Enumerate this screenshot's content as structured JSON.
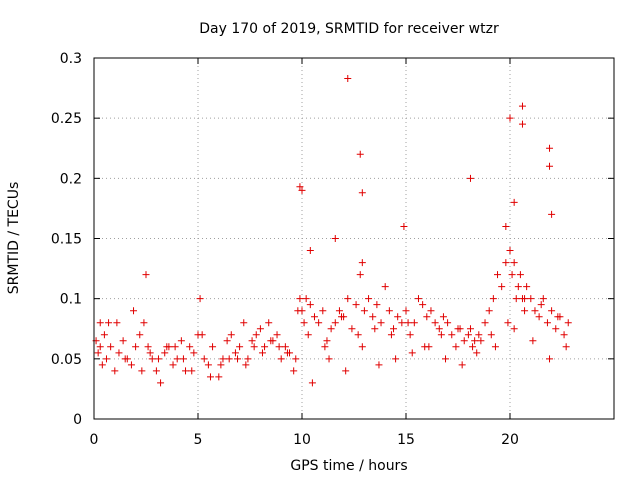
{
  "chart_data": {
    "type": "scatter",
    "title": "Day 170 of 2019, SRMTID for receiver wtzr",
    "xlabel": "GPS time / hours",
    "ylabel": "SRMTID / TECUs",
    "xlim": [
      0,
      25
    ],
    "ylim": [
      0,
      0.3
    ],
    "x_ticks": [
      0,
      5,
      10,
      15,
      20
    ],
    "x_tick_labels": [
      "0",
      "5",
      "10",
      "15",
      "20"
    ],
    "y_ticks": [
      0,
      0.05,
      0.1,
      0.15,
      0.2,
      0.25,
      0.3
    ],
    "y_tick_labels": [
      "0",
      "0.05",
      "0.1",
      "0.15",
      "0.2",
      "0.25",
      "0.3"
    ],
    "grid": true,
    "marker": "+",
    "color": "#e00000",
    "series": [
      {
        "name": "SRMTID",
        "x": [
          0.1,
          0.2,
          0.3,
          0.4,
          0.5,
          0.6,
          0.8,
          1.0,
          1.2,
          1.4,
          1.6,
          1.8,
          2.0,
          2.2,
          2.4,
          2.5,
          2.6,
          2.8,
          3.0,
          3.2,
          3.4,
          3.6,
          3.8,
          4.0,
          4.2,
          4.4,
          4.6,
          4.8,
          5.0,
          5.1,
          5.3,
          5.5,
          5.7,
          6.0,
          6.2,
          6.4,
          6.6,
          6.8,
          7.0,
          7.2,
          7.4,
          7.6,
          7.8,
          8.0,
          8.2,
          8.4,
          8.6,
          8.8,
          9.0,
          9.2,
          9.4,
          9.6,
          9.8,
          9.9,
          10.0,
          10.1,
          10.2,
          10.4,
          10.6,
          10.8,
          11.0,
          11.2,
          11.4,
          11.6,
          11.8,
          12.0,
          12.2,
          12.4,
          12.6,
          12.8,
          12.9,
          13.0,
          13.2,
          13.4,
          13.6,
          13.8,
          14.0,
          14.2,
          14.4,
          14.6,
          14.8,
          15.0,
          15.2,
          15.4,
          15.6,
          15.8,
          16.0,
          16.2,
          16.4,
          16.6,
          16.8,
          17.0,
          17.2,
          17.4,
          17.6,
          17.8,
          18.0,
          18.1,
          18.2,
          18.4,
          18.6,
          18.8,
          19.0,
          19.2,
          19.4,
          19.6,
          19.8,
          20.0,
          20.1,
          20.2,
          20.3,
          20.4,
          20.5,
          20.6,
          20.7,
          20.8,
          21.0,
          21.2,
          21.4,
          21.6,
          21.8,
          22.0,
          22.2,
          22.4,
          22.6,
          22.8,
          0.3,
          1.1,
          1.9,
          2.7,
          3.5,
          4.3,
          5.2,
          6.1,
          6.9,
          7.7,
          8.5,
          9.3,
          10.3,
          11.1,
          11.9,
          12.7,
          13.5,
          14.3,
          15.1,
          15.9,
          16.7,
          17.5,
          18.3,
          19.1,
          19.9,
          20.7,
          21.5,
          22.3,
          0.7,
          1.5,
          2.3,
          3.1,
          3.9,
          4.7,
          5.6,
          6.5,
          7.3,
          8.1,
          8.9,
          9.7,
          10.5,
          11.3,
          12.1,
          12.9,
          13.7,
          14.5,
          15.3,
          16.1,
          16.9,
          17.7,
          18.5,
          19.3,
          20.2,
          21.1,
          21.9,
          22.7,
          12.2,
          12.8,
          12.9,
          9.9,
          10.0,
          18.1,
          20.0,
          20.6,
          20.6,
          21.9,
          21.9,
          22.0,
          19.8,
          20.2,
          14.9,
          11.6,
          10.4
        ],
        "y": [
          0.065,
          0.055,
          0.08,
          0.045,
          0.07,
          0.05,
          0.06,
          0.04,
          0.055,
          0.065,
          0.05,
          0.045,
          0.06,
          0.07,
          0.08,
          0.12,
          0.06,
          0.05,
          0.04,
          0.03,
          0.055,
          0.06,
          0.045,
          0.05,
          0.065,
          0.04,
          0.06,
          0.055,
          0.07,
          0.1,
          0.05,
          0.045,
          0.06,
          0.035,
          0.05,
          0.065,
          0.07,
          0.055,
          0.06,
          0.08,
          0.05,
          0.065,
          0.07,
          0.075,
          0.06,
          0.08,
          0.065,
          0.07,
          0.05,
          0.06,
          0.055,
          0.04,
          0.09,
          0.1,
          0.09,
          0.08,
          0.1,
          0.095,
          0.085,
          0.08,
          0.09,
          0.065,
          0.075,
          0.08,
          0.09,
          0.085,
          0.1,
          0.075,
          0.095,
          0.12,
          0.13,
          0.09,
          0.1,
          0.085,
          0.095,
          0.08,
          0.11,
          0.09,
          0.075,
          0.085,
          0.08,
          0.09,
          0.07,
          0.08,
          0.1,
          0.095,
          0.085,
          0.09,
          0.08,
          0.075,
          0.085,
          0.08,
          0.07,
          0.06,
          0.075,
          0.065,
          0.07,
          0.075,
          0.06,
          0.055,
          0.065,
          0.08,
          0.09,
          0.1,
          0.12,
          0.11,
          0.13,
          0.14,
          0.12,
          0.13,
          0.1,
          0.11,
          0.12,
          0.1,
          0.09,
          0.11,
          0.1,
          0.09,
          0.085,
          0.1,
          0.08,
          0.09,
          0.075,
          0.085,
          0.07,
          0.08,
          0.06,
          0.08,
          0.09,
          0.055,
          0.06,
          0.05,
          0.07,
          0.045,
          0.05,
          0.06,
          0.065,
          0.055,
          0.07,
          0.06,
          0.085,
          0.07,
          0.075,
          0.07,
          0.08,
          0.06,
          0.07,
          0.075,
          0.065,
          0.07,
          0.08,
          0.1,
          0.095,
          0.085,
          0.08,
          0.05,
          0.04,
          0.05,
          0.06,
          0.04,
          0.035,
          0.05,
          0.045,
          0.055,
          0.06,
          0.05,
          0.03,
          0.05,
          0.04,
          0.06,
          0.045,
          0.05,
          0.055,
          0.06,
          0.05,
          0.045,
          0.07,
          0.06,
          0.075,
          0.065,
          0.05,
          0.06,
          0.283,
          0.22,
          0.188,
          0.193,
          0.19,
          0.2,
          0.25,
          0.26,
          0.245,
          0.225,
          0.21,
          0.17,
          0.16,
          0.18,
          0.16,
          0.15,
          0.14
        ]
      }
    ]
  }
}
